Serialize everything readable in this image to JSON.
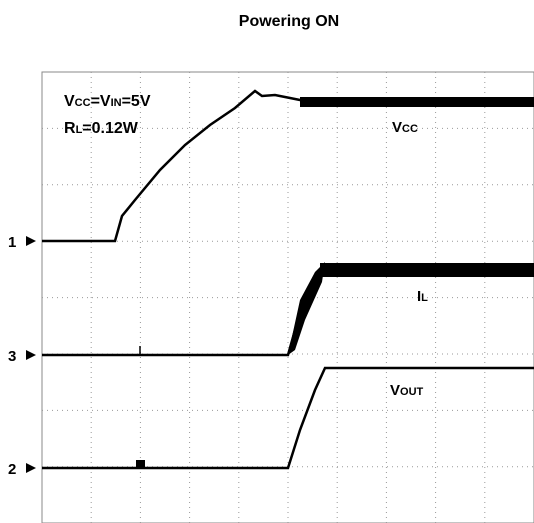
{
  "title": "Powering ON",
  "conditions": [
    {
      "parts": [
        "V",
        "CC",
        "=V",
        "IN",
        "=5V"
      ]
    },
    {
      "parts": [
        "R",
        "L",
        "=0.12W"
      ]
    }
  ],
  "trace_labels": [
    {
      "parts": [
        "V",
        "CC"
      ]
    },
    {
      "parts": [
        "I",
        "L"
      ]
    },
    {
      "parts": [
        "V",
        "OUT"
      ]
    }
  ],
  "channels": [
    "1",
    "3",
    "2"
  ]
}
